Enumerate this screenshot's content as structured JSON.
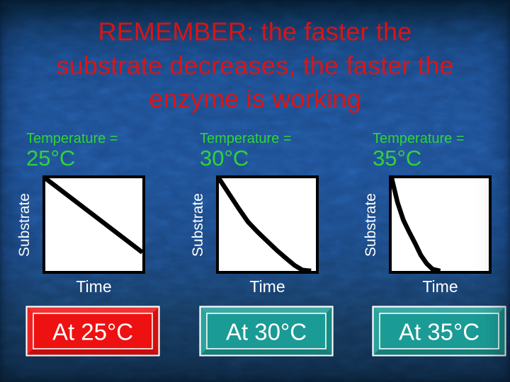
{
  "slide": {
    "title_lines": [
      "REMEMBER: the faster the",
      "substrate decreases, the faster the",
      "enzyme is working"
    ]
  },
  "colors": {
    "title_red": "#dd1414",
    "temp_green": "#2fd437",
    "axis_label_white": "#ffffff",
    "chart_line_black": "#000000",
    "chart_background": "#ffffff",
    "button_red": "#ee1111",
    "button_teal": "#1b9b95",
    "background_blue": "#1d4c8e"
  },
  "panels": [
    {
      "temp_label": "Temperature =",
      "temp_value": "25°C",
      "y_axis_label": "Substrate",
      "x_axis_label": "Time",
      "button_label": "At 25°C",
      "button_color": "#ee1111"
    },
    {
      "temp_label": "Temperature =",
      "temp_value": "30°C",
      "y_axis_label": "Substrate",
      "x_axis_label": "Time",
      "button_label": "At 30°C",
      "button_color": "#1b9b95"
    },
    {
      "temp_label": "Temperature =",
      "temp_value": "35°C",
      "y_axis_label": "Substrate",
      "x_axis_label": "Time",
      "button_label": "At 35°C",
      "button_color": "#1b9b95"
    }
  ],
  "chart_data": [
    {
      "type": "line",
      "temperature": "25°C",
      "xlabel": "Time",
      "ylabel": "Substrate",
      "x_range": [
        0,
        1
      ],
      "y_range": [
        0,
        1
      ],
      "grid": false,
      "shape": "linear-decrease",
      "points": [
        [
          0,
          1
        ],
        [
          1,
          0.2
        ]
      ]
    },
    {
      "type": "line",
      "temperature": "30°C",
      "xlabel": "Time",
      "ylabel": "Substrate",
      "x_range": [
        0,
        1
      ],
      "y_range": [
        0,
        1
      ],
      "grid": false,
      "shape": "exponential-decay",
      "points": [
        [
          0,
          1
        ],
        [
          0.1,
          0.84
        ],
        [
          0.2,
          0.68
        ],
        [
          0.3,
          0.53
        ],
        [
          0.4,
          0.42
        ],
        [
          0.5,
          0.32
        ],
        [
          0.6,
          0.22
        ],
        [
          0.7,
          0.13
        ],
        [
          0.78,
          0.06
        ],
        [
          0.86,
          0.01
        ],
        [
          0.95,
          0
        ]
      ]
    },
    {
      "type": "line",
      "temperature": "35°C",
      "xlabel": "Time",
      "ylabel": "Substrate",
      "x_range": [
        0,
        1
      ],
      "y_range": [
        0,
        1
      ],
      "grid": false,
      "shape": "steep-exponential-decay",
      "points": [
        [
          0,
          1
        ],
        [
          0.06,
          0.74
        ],
        [
          0.12,
          0.55
        ],
        [
          0.18,
          0.42
        ],
        [
          0.24,
          0.3
        ],
        [
          0.3,
          0.17
        ],
        [
          0.36,
          0.08
        ],
        [
          0.42,
          0.02
        ],
        [
          0.5,
          0
        ]
      ]
    }
  ]
}
